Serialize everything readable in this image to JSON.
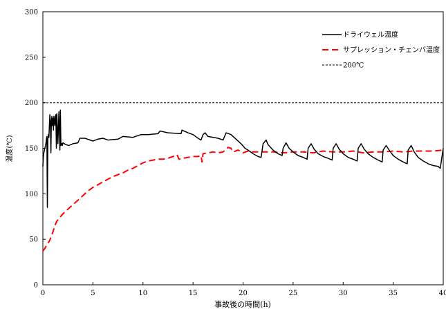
{
  "chart_data": {
    "type": "line",
    "title": "",
    "xlabel": "事故後の時間(h)",
    "ylabel": "温度(℃)",
    "xlim": [
      0,
      40
    ],
    "ylim": [
      0,
      300
    ],
    "xticks": [
      "0",
      "5",
      "10",
      "15",
      "20",
      "25",
      "30",
      "35",
      "40"
    ],
    "yticks": [
      "0",
      "50",
      "100",
      "150",
      "200",
      "250",
      "300"
    ],
    "grid": false,
    "legend_position": "top-right",
    "series": [
      {
        "name": "ドライウェル温度",
        "color": "#000000",
        "style": "solid",
        "x": [
          0,
          0.05,
          0.1,
          0.2,
          0.3,
          0.35,
          0.4,
          0.45,
          0.5,
          0.55,
          0.6,
          0.7,
          0.75,
          0.8,
          0.85,
          0.9,
          0.95,
          1.0,
          1.05,
          1.1,
          1.15,
          1.2,
          1.25,
          1.3,
          1.35,
          1.4,
          1.5,
          1.6,
          1.7,
          1.75,
          1.8,
          1.85,
          1.9,
          1.95,
          2.0,
          2.3,
          2.6,
          3.0,
          3.5,
          3.7,
          4.2,
          5.0,
          5.5,
          6.0,
          6.5,
          7.5,
          8.0,
          9.0,
          9.8,
          10.5,
          11.5,
          11.7,
          12.5,
          13.8,
          13.9,
          14.5,
          15.0,
          15.5,
          15.8,
          16.0,
          16.2,
          16.5,
          17.5,
          18.0,
          18.3,
          18.8,
          19.3,
          19.8,
          20.2,
          20.5,
          21.0,
          21.5,
          21.8,
          22.0,
          22.3,
          22.5,
          23.0,
          23.5,
          23.9,
          24.0,
          24.3,
          24.6,
          25.0,
          25.5,
          26.0,
          26.4,
          26.5,
          26.8,
          27.1,
          27.5,
          28.0,
          28.5,
          28.9,
          29.0,
          29.3,
          29.6,
          30.0,
          30.5,
          31.0,
          31.4,
          31.5,
          31.8,
          32.1,
          32.5,
          33.0,
          33.5,
          33.9,
          34.0,
          34.3,
          34.6,
          35.0,
          35.5,
          36.0,
          36.4,
          36.5,
          36.8,
          37.1,
          37.5,
          38.0,
          38.5,
          39.0,
          39.5,
          39.7,
          40.0
        ],
        "y": [
          130,
          140,
          145,
          150,
          155,
          160,
          163,
          85,
          160,
          165,
          162,
          187,
          178,
          145,
          180,
          185,
          175,
          183,
          170,
          185,
          180,
          175,
          185,
          187,
          150,
          188,
          155,
          190,
          148,
          192,
          153,
          155,
          155,
          153,
          156,
          154,
          153,
          155,
          156,
          161,
          161,
          158,
          160,
          161,
          159,
          160,
          163,
          162,
          165,
          165,
          166,
          169,
          167,
          166,
          170,
          167,
          165,
          161,
          159,
          165,
          167,
          163,
          161,
          159,
          167,
          165,
          160,
          155,
          150,
          148,
          144,
          141,
          140,
          155,
          159,
          154,
          148,
          144,
          142,
          150,
          156,
          150,
          146,
          142,
          140,
          138,
          150,
          155,
          149,
          144,
          141,
          139,
          137,
          150,
          155,
          149,
          144,
          140,
          138,
          136,
          150,
          155,
          149,
          144,
          140,
          137,
          135,
          148,
          153,
          148,
          142,
          138,
          135,
          133,
          148,
          153,
          146,
          140,
          136,
          133,
          131,
          130,
          128,
          150
        ]
      },
      {
        "name": "サプレッション・チェンバ温度",
        "color": "#ff0000",
        "style": "dashed",
        "x": [
          0,
          0.2,
          0.4,
          0.6,
          0.8,
          1.0,
          1.2,
          1.4,
          1.6,
          2.0,
          2.5,
          3.0,
          3.5,
          4.0,
          4.5,
          5.0,
          5.5,
          6.0,
          6.5,
          7.0,
          7.5,
          8.0,
          8.5,
          9.0,
          9.5,
          10.0,
          10.5,
          11.0,
          11.5,
          12.0,
          12.5,
          13.0,
          13.4,
          13.6,
          14.0,
          14.5,
          15.0,
          15.5,
          15.8,
          15.9,
          16.0,
          16.5,
          17.0,
          17.5,
          18.0,
          18.5,
          18.8,
          19.0,
          19.5,
          20.0,
          20.5,
          21.0,
          22.0,
          23.0,
          24.0,
          25.0,
          26.0,
          27.0,
          28.0,
          29.0,
          30.0,
          31.0,
          32.0,
          33.0,
          34.0,
          35.0,
          36.0,
          37.0,
          38.0,
          39.0,
          40.0
        ],
        "y": [
          37,
          40,
          44,
          47,
          52,
          58,
          65,
          70,
          73,
          78,
          83,
          88,
          93,
          98,
          103,
          107,
          110,
          113,
          116,
          119,
          121,
          123,
          126,
          128,
          131,
          134,
          136,
          137,
          138,
          138,
          139,
          141,
          143,
          138,
          139,
          140,
          141,
          141,
          142,
          135,
          144,
          145,
          146,
          145,
          146,
          151,
          150,
          146,
          148,
          145,
          147,
          146,
          146,
          146,
          145,
          146,
          146,
          145,
          147,
          146,
          146,
          147,
          145,
          146,
          146,
          147,
          146,
          147,
          147,
          147,
          148
        ]
      },
      {
        "name": "200℃",
        "color": "#000000",
        "style": "dotted",
        "x": [
          0,
          40
        ],
        "y": [
          200,
          200
        ]
      }
    ]
  }
}
